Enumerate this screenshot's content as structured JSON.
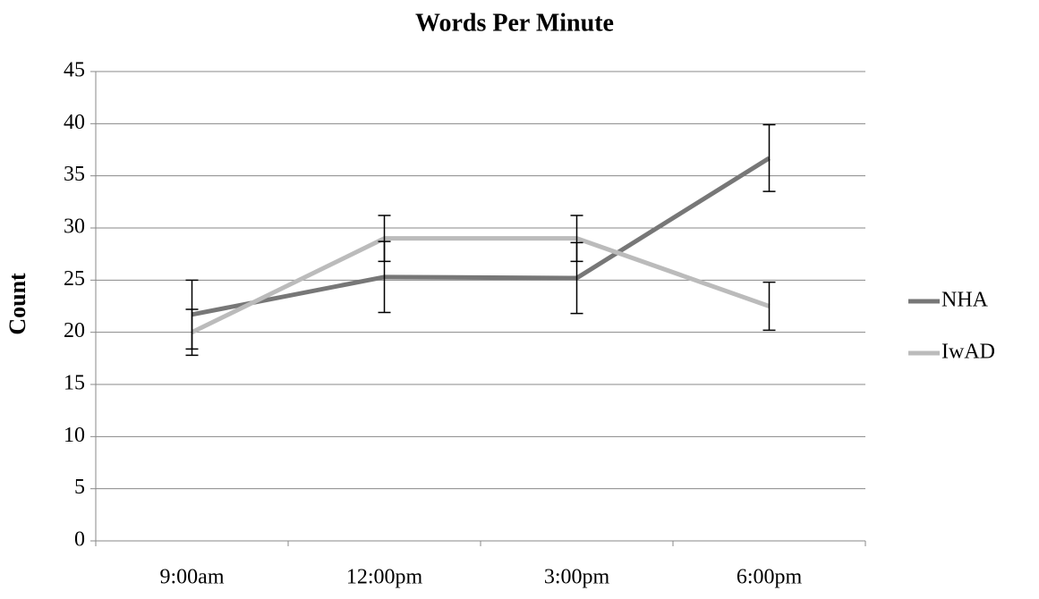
{
  "chart_data": {
    "type": "line",
    "title": "Words Per Minute",
    "y_label": "Count",
    "categories": [
      "9:00am",
      "12:00pm",
      "3:00pm",
      "6:00pm"
    ],
    "series": [
      {
        "name": "NHA",
        "color": "#777777",
        "values": [
          21.7,
          25.3,
          25.2,
          36.7
        ],
        "errors": [
          3.3,
          3.4,
          3.4,
          3.2
        ]
      },
      {
        "name": "IwAD",
        "color": "#bbbbbb",
        "values": [
          20.0,
          29.0,
          29.0,
          22.5
        ],
        "errors": [
          2.2,
          2.2,
          2.2,
          2.3
        ]
      }
    ],
    "ylim": [
      0,
      45
    ],
    "yticks": [
      0,
      5,
      10,
      15,
      20,
      25,
      30,
      35,
      40,
      45
    ],
    "grid": true,
    "legend": "right"
  }
}
